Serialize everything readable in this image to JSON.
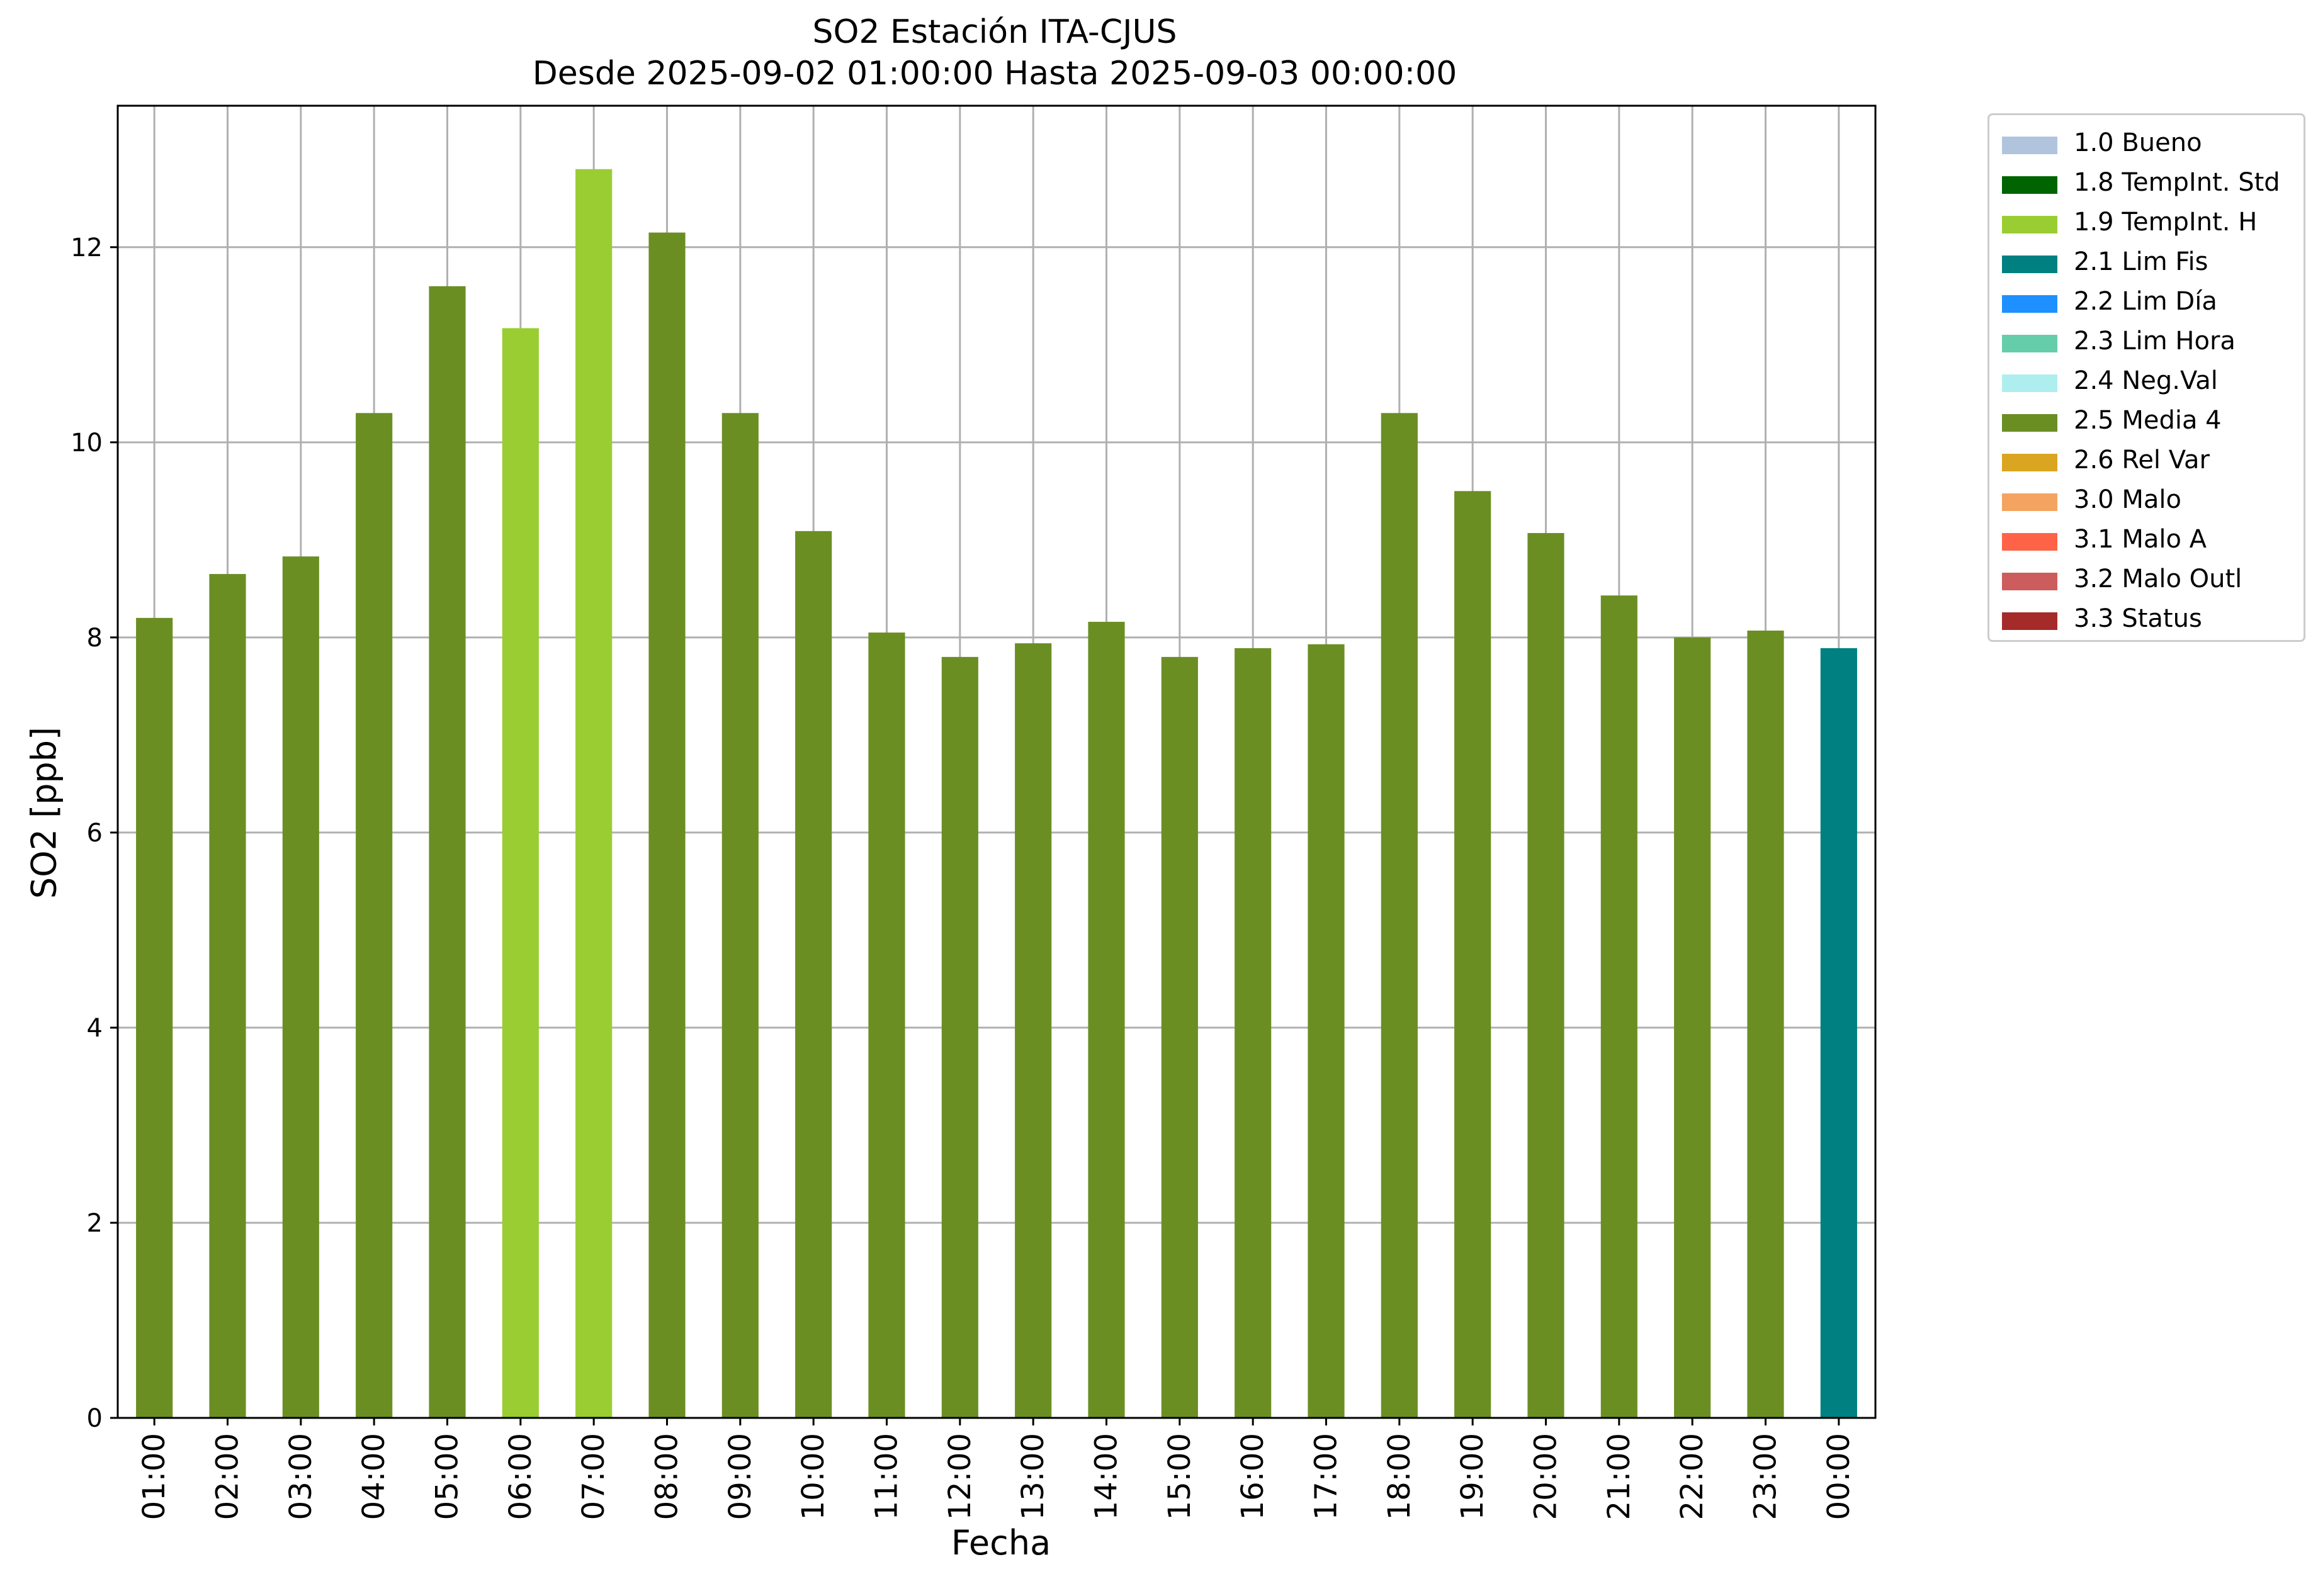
{
  "chart_data": {
    "type": "bar",
    "title": "SO2 Estación ITA-CJUS",
    "subtitle": "Desde 2025-09-02 01:00:00 Hasta 2025-09-03 00:00:00",
    "xlabel": "Fecha",
    "ylabel": "SO2 [ppb]",
    "ylim": [
      0,
      13.45
    ],
    "yticks": [
      0,
      2,
      4,
      6,
      8,
      10,
      12
    ],
    "grid": true,
    "legend_position": "outside top-right",
    "categories": [
      "01:00",
      "02:00",
      "03:00",
      "04:00",
      "05:00",
      "06:00",
      "07:00",
      "08:00",
      "09:00",
      "10:00",
      "11:00",
      "12:00",
      "13:00",
      "14:00",
      "15:00",
      "16:00",
      "17:00",
      "18:00",
      "19:00",
      "20:00",
      "21:00",
      "22:00",
      "23:00",
      "00:00"
    ],
    "values": [
      8.2,
      8.65,
      8.83,
      10.3,
      11.6,
      11.17,
      12.8,
      12.15,
      10.3,
      9.09,
      8.05,
      7.8,
      7.94,
      8.16,
      7.8,
      7.89,
      7.93,
      10.3,
      9.5,
      9.07,
      8.43,
      8.0,
      8.07,
      7.89
    ],
    "bar_flags": [
      "2.5 Media 4",
      "2.5 Media 4",
      "2.5 Media 4",
      "2.5 Media 4",
      "2.5 Media 4",
      "1.9 TempInt. H",
      "1.9 TempInt. H",
      "2.5 Media 4",
      "2.5 Media 4",
      "2.5 Media 4",
      "2.5 Media 4",
      "2.5 Media 4",
      "2.5 Media 4",
      "2.5 Media 4",
      "2.5 Media 4",
      "2.5 Media 4",
      "2.5 Media 4",
      "2.5 Media 4",
      "2.5 Media 4",
      "2.5 Media 4",
      "2.5 Media 4",
      "2.5 Media 4",
      "2.5 Media 4",
      "2.1 Lim Fis"
    ],
    "legend": [
      {
        "label": "1.0 Bueno",
        "color": "#b0c4de"
      },
      {
        "label": "1.8 TempInt. Std",
        "color": "#006400"
      },
      {
        "label": "1.9 TempInt. H",
        "color": "#9acd32"
      },
      {
        "label": "2.1 Lim Fis",
        "color": "#008080"
      },
      {
        "label": "2.2 Lim Día",
        "color": "#1e90ff"
      },
      {
        "label": "2.3 Lim Hora",
        "color": "#66cdaa"
      },
      {
        "label": "2.4 Neg.Val",
        "color": "#afeeee"
      },
      {
        "label": "2.5 Media 4",
        "color": "#6b8e23"
      },
      {
        "label": "2.6 Rel Var",
        "color": "#daa520"
      },
      {
        "label": "3.0 Malo",
        "color": "#f4a460"
      },
      {
        "label": "3.1 Malo A",
        "color": "#ff6347"
      },
      {
        "label": "3.2 Malo Outl",
        "color": "#cd5c5c"
      },
      {
        "label": "3.3 Status",
        "color": "#a52a2a"
      }
    ]
  }
}
